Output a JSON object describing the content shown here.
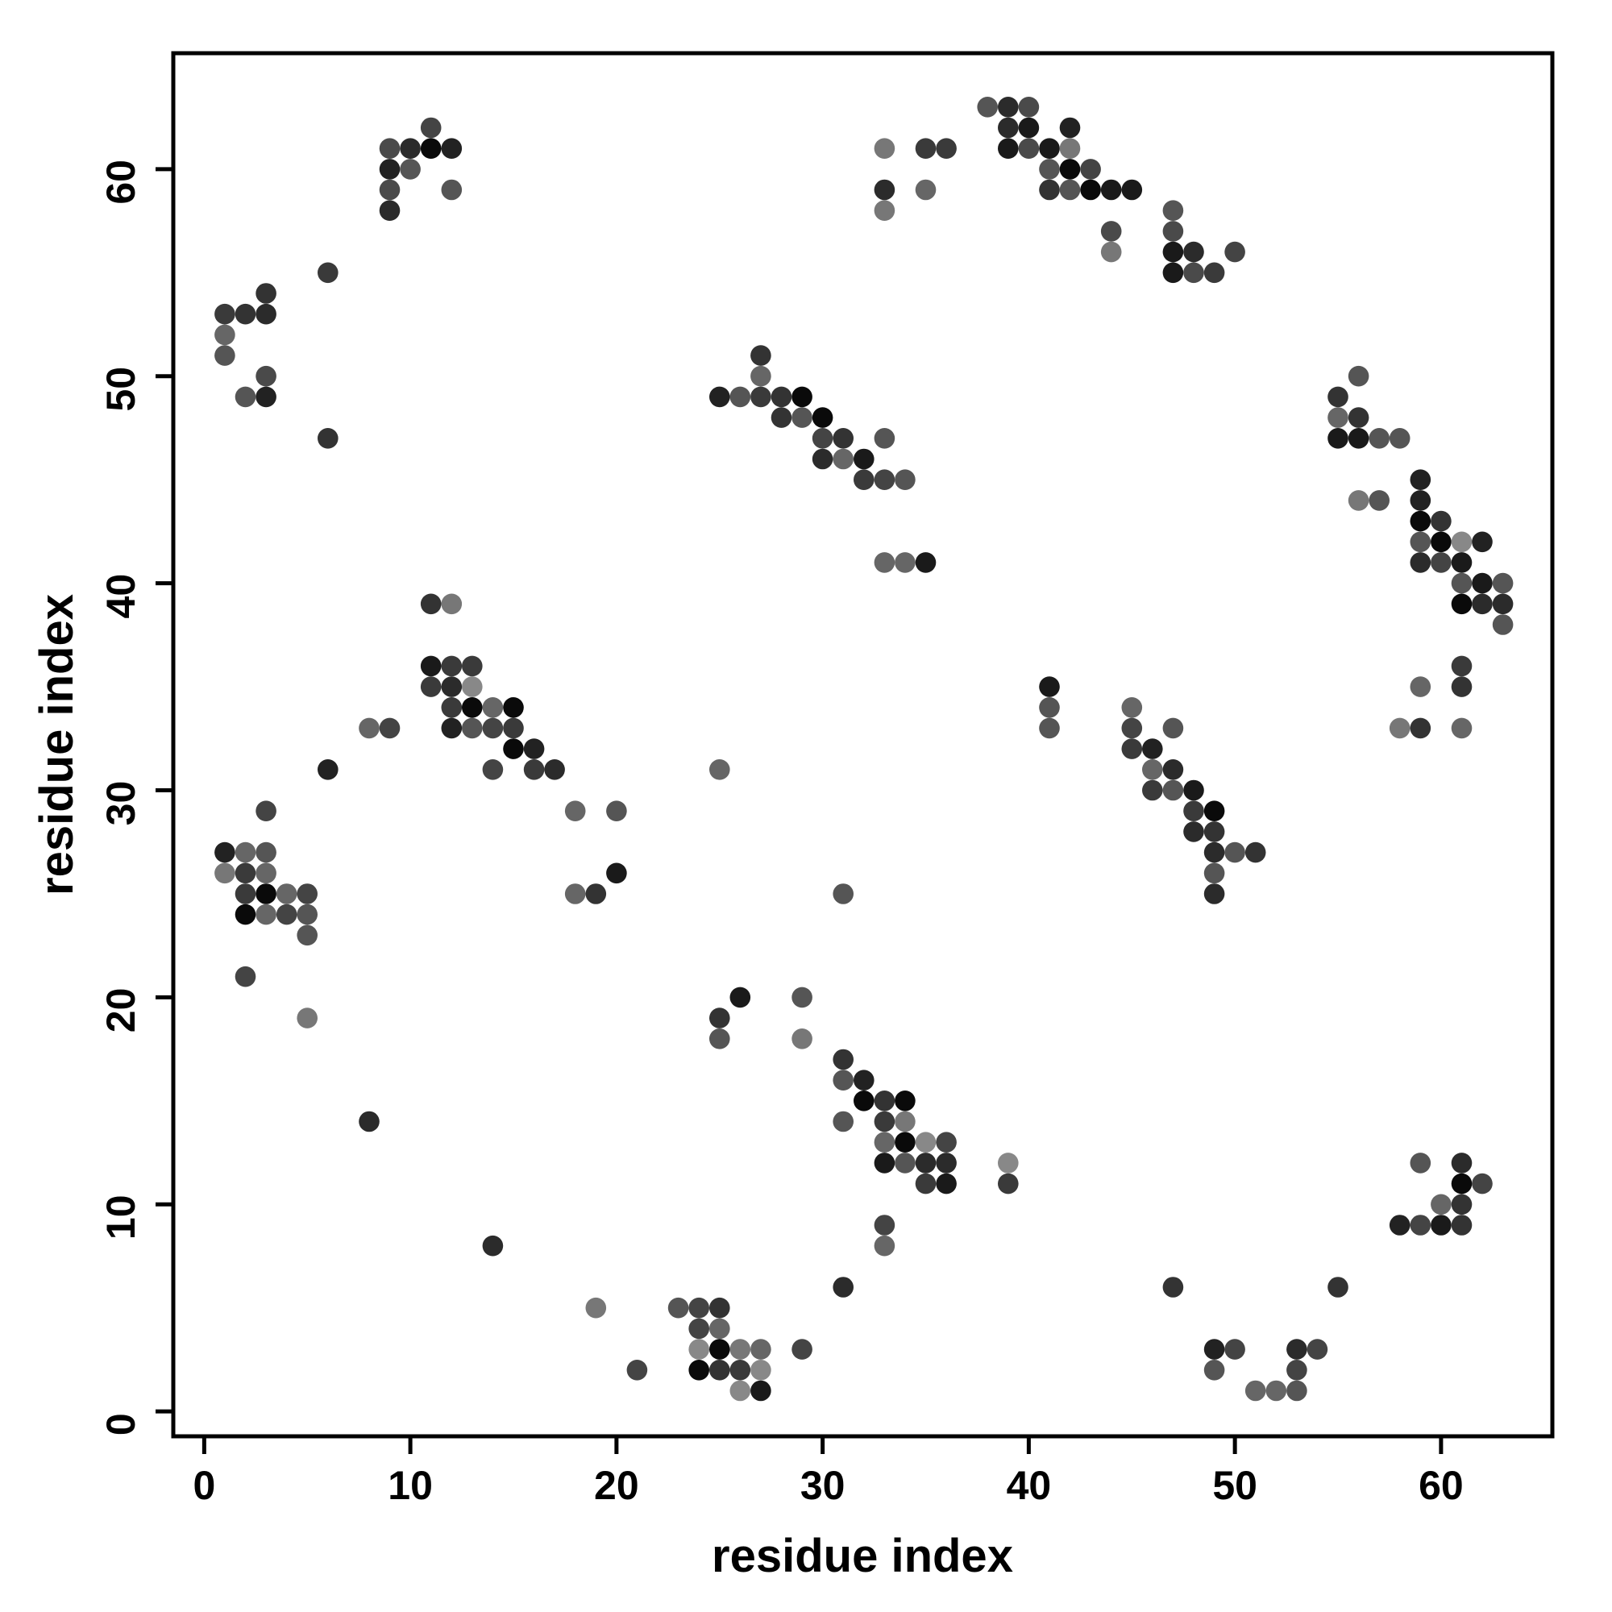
{
  "figure": {
    "xlabel": "residue index",
    "ylabel": "residue index"
  },
  "chart_data": {
    "type": "scatter",
    "title": "",
    "xlabel": "residue index",
    "ylabel": "residue index",
    "xlim": [
      -1.5,
      65.4
    ],
    "ylim": [
      -1.2,
      65.6
    ],
    "xticks": [
      0,
      10,
      20,
      30,
      40,
      50,
      60
    ],
    "yticks": [
      0,
      10,
      20,
      30,
      40,
      50,
      60
    ],
    "grid": false,
    "legend": null,
    "marker": "circle",
    "marker_radius_px": 12.8,
    "points": [
      [
        1,
        53,
        "#3a3a3a"
      ],
      [
        2,
        53,
        "#333333"
      ],
      [
        3,
        53,
        "#2b2b2b"
      ],
      [
        1,
        52,
        "#666666"
      ],
      [
        1,
        51,
        "#555555"
      ],
      [
        3,
        54,
        "#333333"
      ],
      [
        3,
        50,
        "#4a4a4a"
      ],
      [
        2,
        49,
        "#555555"
      ],
      [
        3,
        49,
        "#222222"
      ],
      [
        6,
        55,
        "#3a3a3a"
      ],
      [
        6,
        47,
        "#333333"
      ],
      [
        11,
        62,
        "#444444"
      ],
      [
        9,
        61,
        "#4a4a4a"
      ],
      [
        10,
        61,
        "#2b2b2b"
      ],
      [
        11,
        61,
        "#0a0a0a"
      ],
      [
        12,
        61,
        "#222222"
      ],
      [
        9,
        60,
        "#222222"
      ],
      [
        10,
        60,
        "#555555"
      ],
      [
        9,
        59,
        "#4a4a4a"
      ],
      [
        12,
        59,
        "#555555"
      ],
      [
        9,
        58,
        "#2b2b2b"
      ],
      [
        38,
        63,
        "#555555"
      ],
      [
        39,
        63,
        "#2b2b2b"
      ],
      [
        40,
        63,
        "#4a4a4a"
      ],
      [
        39,
        62,
        "#2b2b2b"
      ],
      [
        40,
        62,
        "#1a1a1a"
      ],
      [
        42,
        62,
        "#222222"
      ],
      [
        33,
        61,
        "#777777"
      ],
      [
        35,
        61,
        "#3a3a3a"
      ],
      [
        36,
        61,
        "#3a3a3a"
      ],
      [
        39,
        61,
        "#1a1a1a"
      ],
      [
        40,
        61,
        "#4a4a4a"
      ],
      [
        41,
        61,
        "#1a1a1a"
      ],
      [
        42,
        61,
        "#777777"
      ],
      [
        41,
        60,
        "#555555"
      ],
      [
        42,
        60,
        "#0a0a0a"
      ],
      [
        43,
        60,
        "#444444"
      ],
      [
        33,
        59,
        "#2b2b2b"
      ],
      [
        35,
        59,
        "#666666"
      ],
      [
        41,
        59,
        "#333333"
      ],
      [
        42,
        59,
        "#555555"
      ],
      [
        43,
        59,
        "#0a0a0a"
      ],
      [
        44,
        59,
        "#1a1a1a"
      ],
      [
        45,
        59,
        "#1a1a1a"
      ],
      [
        33,
        58,
        "#777777"
      ],
      [
        47,
        58,
        "#555555"
      ],
      [
        44,
        57,
        "#4a4a4a"
      ],
      [
        47,
        57,
        "#4a4a4a"
      ],
      [
        44,
        56,
        "#777777"
      ],
      [
        47,
        56,
        "#1a1a1a"
      ],
      [
        48,
        56,
        "#2b2b2b"
      ],
      [
        50,
        56,
        "#444444"
      ],
      [
        47,
        55,
        "#1a1a1a"
      ],
      [
        48,
        55,
        "#4a4a4a"
      ],
      [
        49,
        55,
        "#3a3a3a"
      ],
      [
        11,
        39,
        "#333333"
      ],
      [
        12,
        39,
        "#777777"
      ],
      [
        11,
        36,
        "#1a1a1a"
      ],
      [
        12,
        36,
        "#3a3a3a"
      ],
      [
        13,
        36,
        "#3a3a3a"
      ],
      [
        11,
        35,
        "#3a3a3a"
      ],
      [
        12,
        35,
        "#2b2b2b"
      ],
      [
        13,
        35,
        "#888888"
      ],
      [
        12,
        34,
        "#3a3a3a"
      ],
      [
        13,
        34,
        "#0a0a0a"
      ],
      [
        14,
        34,
        "#666666"
      ],
      [
        15,
        34,
        "#0a0a0a"
      ],
      [
        8,
        33,
        "#666666"
      ],
      [
        9,
        33,
        "#444444"
      ],
      [
        12,
        33,
        "#222222"
      ],
      [
        13,
        33,
        "#555555"
      ],
      [
        14,
        33,
        "#444444"
      ],
      [
        15,
        33,
        "#3a3a3a"
      ],
      [
        15,
        32,
        "#0a0a0a"
      ],
      [
        16,
        32,
        "#222222"
      ],
      [
        6,
        31,
        "#222222"
      ],
      [
        14,
        31,
        "#444444"
      ],
      [
        16,
        31,
        "#3a3a3a"
      ],
      [
        17,
        31,
        "#2b2b2b"
      ],
      [
        3,
        29,
        "#444444"
      ],
      [
        18,
        29,
        "#666666"
      ],
      [
        20,
        29,
        "#555555"
      ],
      [
        1,
        27,
        "#222222"
      ],
      [
        2,
        27,
        "#666666"
      ],
      [
        3,
        27,
        "#555555"
      ],
      [
        1,
        26,
        "#777777"
      ],
      [
        2,
        26,
        "#3a3a3a"
      ],
      [
        3,
        26,
        "#666666"
      ],
      [
        2,
        25,
        "#3a3a3a"
      ],
      [
        3,
        25,
        "#0a0a0a"
      ],
      [
        4,
        25,
        "#666666"
      ],
      [
        5,
        25,
        "#444444"
      ],
      [
        2,
        24,
        "#0a0a0a"
      ],
      [
        3,
        24,
        "#666666"
      ],
      [
        4,
        24,
        "#444444"
      ],
      [
        5,
        24,
        "#555555"
      ],
      [
        5,
        23,
        "#555555"
      ],
      [
        2,
        21,
        "#444444"
      ],
      [
        5,
        19,
        "#777777"
      ],
      [
        25,
        31,
        "#666666"
      ],
      [
        20,
        26,
        "#1a1a1a"
      ],
      [
        18,
        25,
        "#666666"
      ],
      [
        19,
        25,
        "#333333"
      ],
      [
        31,
        25,
        "#555555"
      ],
      [
        8,
        14,
        "#2b2b2b"
      ],
      [
        14,
        8,
        "#2b2b2b"
      ],
      [
        27,
        51,
        "#333333"
      ],
      [
        27,
        50,
        "#666666"
      ],
      [
        25,
        49,
        "#222222"
      ],
      [
        26,
        49,
        "#555555"
      ],
      [
        27,
        49,
        "#3a3a3a"
      ],
      [
        28,
        49,
        "#333333"
      ],
      [
        29,
        49,
        "#0a0a0a"
      ],
      [
        28,
        48,
        "#333333"
      ],
      [
        29,
        48,
        "#555555"
      ],
      [
        30,
        48,
        "#0a0a0a"
      ],
      [
        30,
        47,
        "#444444"
      ],
      [
        31,
        47,
        "#333333"
      ],
      [
        33,
        47,
        "#555555"
      ],
      [
        30,
        46,
        "#2b2b2b"
      ],
      [
        31,
        46,
        "#666666"
      ],
      [
        32,
        46,
        "#1a1a1a"
      ],
      [
        32,
        45,
        "#3a3a3a"
      ],
      [
        33,
        45,
        "#444444"
      ],
      [
        34,
        45,
        "#555555"
      ],
      [
        33,
        41,
        "#666666"
      ],
      [
        34,
        41,
        "#666666"
      ],
      [
        35,
        41,
        "#1a1a1a"
      ],
      [
        41,
        35,
        "#1a1a1a"
      ],
      [
        41,
        34,
        "#555555"
      ],
      [
        41,
        33,
        "#555555"
      ],
      [
        45,
        34,
        "#666666"
      ],
      [
        45,
        33,
        "#444444"
      ],
      [
        47,
        33,
        "#555555"
      ],
      [
        45,
        32,
        "#3a3a3a"
      ],
      [
        46,
        32,
        "#222222"
      ],
      [
        46,
        31,
        "#666666"
      ],
      [
        47,
        31,
        "#2b2b2b"
      ],
      [
        46,
        30,
        "#3a3a3a"
      ],
      [
        47,
        30,
        "#555555"
      ],
      [
        48,
        30,
        "#1a1a1a"
      ],
      [
        48,
        29,
        "#3a3a3a"
      ],
      [
        49,
        29,
        "#0a0a0a"
      ],
      [
        48,
        28,
        "#2b2b2b"
      ],
      [
        49,
        28,
        "#333333"
      ],
      [
        49,
        27,
        "#2b2b2b"
      ],
      [
        50,
        27,
        "#555555"
      ],
      [
        51,
        27,
        "#333333"
      ],
      [
        49,
        26,
        "#555555"
      ],
      [
        49,
        25,
        "#2b2b2b"
      ],
      [
        26,
        20,
        "#1a1a1a"
      ],
      [
        29,
        20,
        "#555555"
      ],
      [
        25,
        19,
        "#333333"
      ],
      [
        25,
        18,
        "#555555"
      ],
      [
        29,
        18,
        "#777777"
      ],
      [
        31,
        17,
        "#333333"
      ],
      [
        31,
        16,
        "#555555"
      ],
      [
        32,
        16,
        "#222222"
      ],
      [
        32,
        15,
        "#0a0a0a"
      ],
      [
        33,
        15,
        "#333333"
      ],
      [
        34,
        15,
        "#0a0a0a"
      ],
      [
        31,
        14,
        "#555555"
      ],
      [
        33,
        14,
        "#3a3a3a"
      ],
      [
        34,
        14,
        "#777777"
      ],
      [
        33,
        13,
        "#666666"
      ],
      [
        34,
        13,
        "#0a0a0a"
      ],
      [
        35,
        13,
        "#888888"
      ],
      [
        36,
        13,
        "#444444"
      ],
      [
        33,
        12,
        "#1a1a1a"
      ],
      [
        34,
        12,
        "#555555"
      ],
      [
        35,
        12,
        "#2b2b2b"
      ],
      [
        36,
        12,
        "#2b2b2b"
      ],
      [
        39,
        12,
        "#888888"
      ],
      [
        35,
        11,
        "#3a3a3a"
      ],
      [
        36,
        11,
        "#1a1a1a"
      ],
      [
        39,
        11,
        "#3a3a3a"
      ],
      [
        33,
        9,
        "#444444"
      ],
      [
        33,
        8,
        "#666666"
      ],
      [
        31,
        6,
        "#2b2b2b"
      ],
      [
        19,
        5,
        "#777777"
      ],
      [
        23,
        5,
        "#555555"
      ],
      [
        24,
        5,
        "#444444"
      ],
      [
        25,
        5,
        "#333333"
      ],
      [
        24,
        4,
        "#444444"
      ],
      [
        25,
        4,
        "#666666"
      ],
      [
        24,
        3,
        "#888888"
      ],
      [
        25,
        3,
        "#0a0a0a"
      ],
      [
        26,
        3,
        "#777777"
      ],
      [
        27,
        3,
        "#666666"
      ],
      [
        29,
        3,
        "#444444"
      ],
      [
        21,
        2,
        "#444444"
      ],
      [
        24,
        2,
        "#0a0a0a"
      ],
      [
        25,
        2,
        "#333333"
      ],
      [
        26,
        2,
        "#3a3a3a"
      ],
      [
        27,
        2,
        "#888888"
      ],
      [
        26,
        1,
        "#888888"
      ],
      [
        27,
        1,
        "#1a1a1a"
      ],
      [
        47,
        6,
        "#333333"
      ],
      [
        55,
        6,
        "#333333"
      ],
      [
        49,
        3,
        "#222222"
      ],
      [
        50,
        3,
        "#444444"
      ],
      [
        53,
        3,
        "#2b2b2b"
      ],
      [
        54,
        3,
        "#444444"
      ],
      [
        49,
        2,
        "#555555"
      ],
      [
        53,
        2,
        "#444444"
      ],
      [
        51,
        1,
        "#666666"
      ],
      [
        52,
        1,
        "#666666"
      ],
      [
        53,
        1,
        "#555555"
      ],
      [
        58,
        9,
        "#222222"
      ],
      [
        59,
        9,
        "#444444"
      ],
      [
        60,
        9,
        "#1a1a1a"
      ],
      [
        61,
        9,
        "#333333"
      ],
      [
        60,
        10,
        "#666666"
      ],
      [
        61,
        10,
        "#333333"
      ],
      [
        61,
        11,
        "#0a0a0a"
      ],
      [
        62,
        11,
        "#444444"
      ],
      [
        59,
        12,
        "#555555"
      ],
      [
        61,
        12,
        "#2b2b2b"
      ],
      [
        56,
        50,
        "#555555"
      ],
      [
        55,
        49,
        "#333333"
      ],
      [
        55,
        48,
        "#666666"
      ],
      [
        56,
        48,
        "#333333"
      ],
      [
        55,
        47,
        "#1a1a1a"
      ],
      [
        56,
        47,
        "#1a1a1a"
      ],
      [
        57,
        47,
        "#555555"
      ],
      [
        58,
        47,
        "#555555"
      ],
      [
        59,
        45,
        "#222222"
      ],
      [
        56,
        44,
        "#777777"
      ],
      [
        57,
        44,
        "#555555"
      ],
      [
        59,
        44,
        "#222222"
      ],
      [
        59,
        43,
        "#0a0a0a"
      ],
      [
        60,
        43,
        "#333333"
      ],
      [
        59,
        42,
        "#555555"
      ],
      [
        60,
        42,
        "#0a0a0a"
      ],
      [
        61,
        42,
        "#888888"
      ],
      [
        62,
        42,
        "#222222"
      ],
      [
        59,
        41,
        "#2b2b2b"
      ],
      [
        60,
        41,
        "#444444"
      ],
      [
        61,
        41,
        "#1a1a1a"
      ],
      [
        61,
        40,
        "#555555"
      ],
      [
        62,
        40,
        "#1a1a1a"
      ],
      [
        63,
        40,
        "#555555"
      ],
      [
        61,
        39,
        "#0a0a0a"
      ],
      [
        62,
        39,
        "#2b2b2b"
      ],
      [
        63,
        39,
        "#2b2b2b"
      ],
      [
        63,
        38,
        "#555555"
      ],
      [
        61,
        36,
        "#3a3a3a"
      ],
      [
        59,
        35,
        "#666666"
      ],
      [
        61,
        35,
        "#333333"
      ],
      [
        58,
        33,
        "#777777"
      ],
      [
        59,
        33,
        "#333333"
      ],
      [
        61,
        33,
        "#666666"
      ]
    ]
  }
}
